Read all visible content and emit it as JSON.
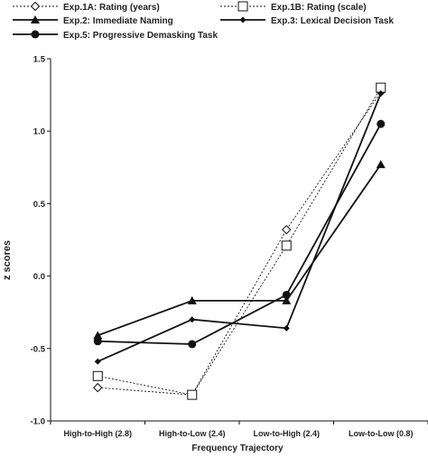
{
  "chart_data": {
    "type": "line",
    "xlabel": "Frequency Trajectory",
    "ylabel": "z scores",
    "categories": [
      "High-to-High (2.8)",
      "High-to-Low (2.4)",
      "Low-to-High (2.4)",
      "Low-to-Low (0.8)"
    ],
    "ylim": [
      -1.0,
      1.5
    ],
    "yticks": [
      "1.5",
      "1.0",
      "0.5",
      "0.0",
      "-0.5",
      "-1.0"
    ],
    "grid": false,
    "legend_position": "top",
    "series": [
      {
        "name": "Exp.1A: Rating (years)",
        "values": [
          -0.77,
          -0.82,
          0.32,
          1.27
        ],
        "marker": "open-diamond",
        "line": "dotted"
      },
      {
        "name": "Exp.1B: Rating (scale)",
        "values": [
          -0.69,
          -0.82,
          0.21,
          1.3
        ],
        "marker": "open-square",
        "line": "dotted"
      },
      {
        "name": "Exp.2: Immediate Naming",
        "values": [
          -0.41,
          -0.17,
          -0.17,
          0.77
        ],
        "marker": "filled-triangle",
        "line": "solid"
      },
      {
        "name": "Exp.3: Lexical Decision Task",
        "values": [
          -0.59,
          -0.3,
          -0.36,
          1.26
        ],
        "marker": "filled-small-diamond",
        "line": "solid"
      },
      {
        "name": "Exp.5: Progressive Demasking Task",
        "values": [
          -0.45,
          -0.47,
          -0.13,
          1.05
        ],
        "marker": "filled-circle",
        "line": "solid"
      }
    ]
  }
}
